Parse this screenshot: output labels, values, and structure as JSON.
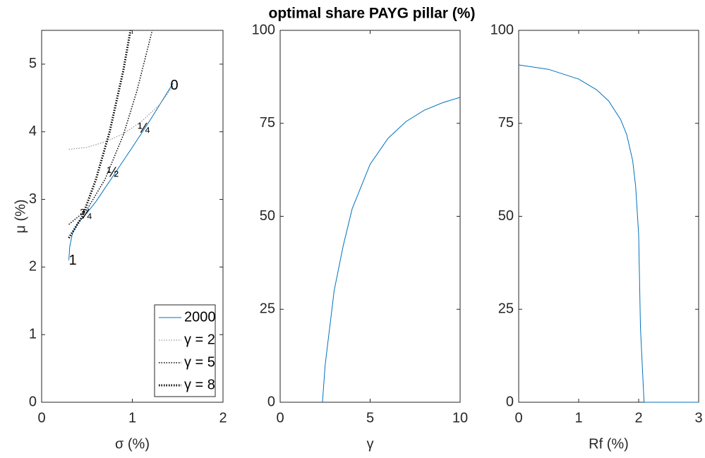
{
  "title": "optimal share PAYG pillar (%)",
  "chart_data": [
    {
      "type": "line",
      "xlabel": "σ (%)",
      "ylabel": "μ (%)",
      "xlim": [
        0,
        2
      ],
      "ylim": [
        0,
        5.5
      ],
      "xticks": [
        0,
        1,
        2
      ],
      "yticks": [
        0,
        1,
        2,
        3,
        4,
        5
      ],
      "legend": "southeast",
      "series": [
        {
          "name": "2000",
          "color": "#0072bd",
          "line_style": "solid",
          "line_width": 1,
          "x": [
            0.3,
            0.31,
            0.34,
            0.4,
            0.5,
            0.6,
            0.8,
            1.0,
            1.2,
            1.45
          ],
          "values": [
            2.1,
            2.3,
            2.5,
            2.65,
            2.8,
            2.97,
            3.37,
            3.77,
            4.18,
            4.72
          ]
        },
        {
          "name": "γ = 2",
          "color": "#808080",
          "line_style": "dotted",
          "line_width": 1,
          "x": [
            0.3,
            0.5,
            0.7,
            0.9,
            1.1,
            1.3,
            1.45
          ],
          "values": [
            3.74,
            3.77,
            3.85,
            3.97,
            4.15,
            4.4,
            4.68
          ]
        },
        {
          "name": "γ = 5",
          "color": "#000000",
          "line_style": "dotted",
          "line_width": 1.5,
          "x": [
            0.3,
            0.5,
            0.7,
            0.9,
            1.05,
            1.22
          ],
          "values": [
            2.63,
            2.85,
            3.3,
            3.95,
            4.6,
            5.5
          ]
        },
        {
          "name": "γ = 8",
          "color": "#000000",
          "line_style": "dotted",
          "line_width": 3,
          "x": [
            0.3,
            0.45,
            0.6,
            0.75,
            0.9,
            0.98
          ],
          "values": [
            2.43,
            2.75,
            3.3,
            4.0,
            4.9,
            5.5
          ]
        }
      ],
      "annotations": [
        {
          "text": "1",
          "x": 0.3,
          "y": 2.09
        },
        {
          "text": "¾",
          "x": 0.42,
          "y": 2.77
        },
        {
          "text": "½",
          "x": 0.72,
          "y": 3.39
        },
        {
          "text": "¼",
          "x": 1.06,
          "y": 4.04
        },
        {
          "text": "0",
          "x": 1.42,
          "y": 4.68
        }
      ]
    },
    {
      "type": "line",
      "xlabel": "γ",
      "xlim": [
        0,
        10
      ],
      "ylim": [
        0,
        100
      ],
      "xticks": [
        0,
        5,
        10
      ],
      "yticks": [
        0,
        25,
        50,
        75,
        100
      ],
      "series": [
        {
          "color": "#0072bd",
          "line_style": "solid",
          "line_width": 1,
          "x": [
            2.35,
            2.5,
            3,
            3.5,
            4,
            5,
            6,
            7,
            8,
            9,
            10
          ],
          "values": [
            0,
            10,
            30,
            42,
            52,
            64,
            71,
            75.5,
            78.5,
            80.5,
            82
          ]
        }
      ]
    },
    {
      "type": "line",
      "xlabel": "Rf (%)",
      "xlim": [
        0,
        3
      ],
      "ylim": [
        0,
        100
      ],
      "xticks": [
        0,
        1,
        2,
        3
      ],
      "yticks": [
        0,
        25,
        50,
        75,
        100
      ],
      "series": [
        {
          "color": "#0072bd",
          "line_style": "solid",
          "line_width": 1,
          "x": [
            0,
            0.5,
            1,
            1.3,
            1.5,
            1.7,
            1.8,
            1.9,
            1.95,
            2.0,
            2.03,
            2.09,
            3
          ],
          "values": [
            90.7,
            89.5,
            86.9,
            84,
            81,
            76,
            72,
            65,
            58,
            45,
            20,
            0,
            0
          ]
        }
      ]
    }
  ]
}
